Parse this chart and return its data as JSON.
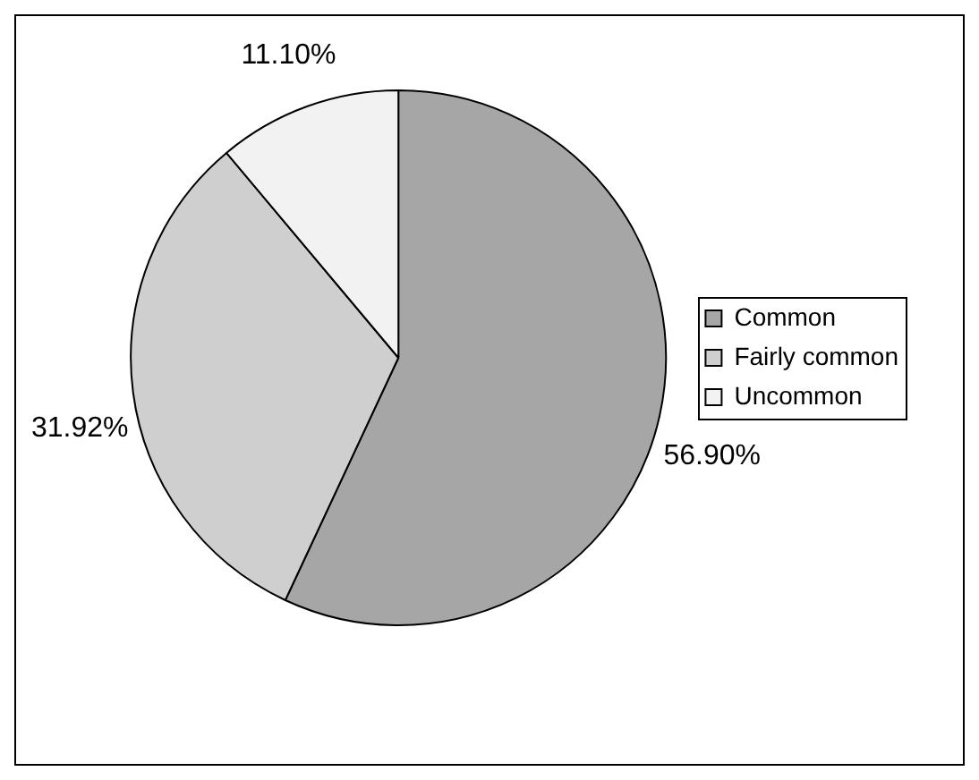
{
  "chart_data": {
    "type": "pie",
    "categories": [
      "Common",
      "Fairly common",
      "Uncommon"
    ],
    "values": [
      56.9,
      31.92,
      11.1
    ],
    "colors": [
      "#a6a6a6",
      "#cfcfcf",
      "#f2f2f2"
    ],
    "value_labels": [
      "56.90%",
      "31.92%",
      "11.10%"
    ],
    "legend": "right"
  }
}
